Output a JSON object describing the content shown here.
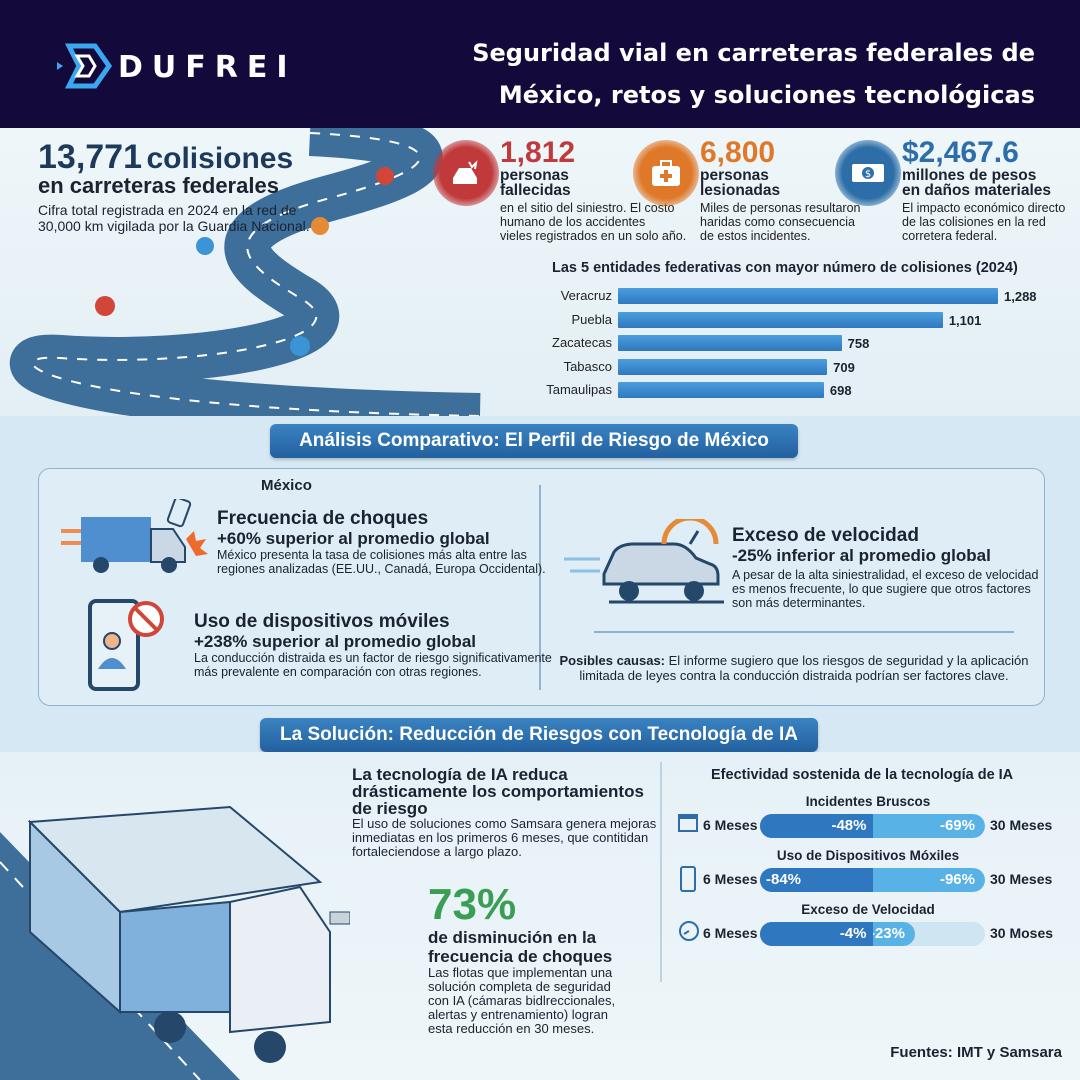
{
  "header": {
    "logo": "DUFREI",
    "title_line1": "Seguridad vial en carreteras federales de",
    "title_line2": "México, retos y soluciones tecnológicas"
  },
  "summary": {
    "number": "13,771",
    "unit": "colisiones",
    "subtitle": "en carreteras federales",
    "desc_line1": "Cifra total registrada en 2024 en la red de",
    "desc_line2": "30,000 km vigilada por la Guardia Nacional."
  },
  "stats": [
    {
      "icon": "car-crash-icon",
      "value": "1,812",
      "label1": "personas",
      "label2": "fallecidas",
      "desc": [
        "en el sitio del siniestro. El costo",
        "humano de los accidentes",
        "vieles registrados en un solo año."
      ],
      "color": "#c0393b"
    },
    {
      "icon": "first-aid-kit-icon",
      "value": "6,800",
      "label1": "personas",
      "label2": "lesionadas",
      "desc": [
        "Miles de personas resultaron",
        "haridas como consecuencia",
        "de estos incidentes."
      ],
      "color": "#e0782a"
    },
    {
      "icon": "money-icon",
      "value": "$2,467.6",
      "label1": "millones de pesos",
      "label2": "en daños materiales",
      "desc": [
        "El impacto económico directo",
        "de las colisiones en la red",
        "corretera federal."
      ],
      "color": "#2d6ea8"
    }
  ],
  "chart_data": {
    "type": "bar",
    "title": "Las 5 entidades federativas con mayor número de colisiones (2024)",
    "categories": [
      "Veracruz",
      "Puebla",
      "Zacatecas",
      "Tabasco",
      "Tamaulipas"
    ],
    "values": [
      1288,
      1101,
      758,
      709,
      698
    ],
    "value_labels": [
      "1,288",
      "1,101",
      "758",
      "709",
      "698"
    ],
    "orientation": "horizontal"
  },
  "analysis": {
    "banner": "Análisis Comparativo: El Perfil de Riesgo de México",
    "country": "México",
    "items": [
      {
        "title": "Frecuencia de choques",
        "sub": "+60% superior al promedio global",
        "desc": [
          "México presenta la tasa de colisiones más alta entre las",
          "regiones analizadas (EE.UU., Canadá, Europa Occidental)."
        ]
      },
      {
        "title": "Uso de dispositivos móviles",
        "sub": "+238% superior al promedio global",
        "desc": [
          "La conducción distraida es un factor de riesgo significativamente",
          "más prevalente en comparación con otras regiones."
        ]
      },
      {
        "title": "Exceso de velocidad",
        "sub": "-25% inferior al promedio global",
        "desc": [
          "A pesar de la alta siniestralidad, el exceso de velocidad",
          "es menos frecuente, lo que sugiere que otros factores",
          "son más determinantes."
        ]
      }
    ],
    "causes_label": "Posibles causas:",
    "causes_line1": " El informe sugiero que los riesgos de seguridad y la aplicación",
    "causes_line2": "limitada de leyes contra la conducción distraida podrían ser factores clave."
  },
  "solution": {
    "banner": "La Solución: Reducción de Riesgos con Tecnología de IA",
    "title": [
      "La tecnología de IA reduca",
      "drásticamente los comportamientos",
      "de riesgo"
    ],
    "desc": [
      "El uso de soluciones como Samsara genera mejoras",
      "inmediatas en los primeros 6 meses, que contitidan",
      "fortaleciendose a largo plazo."
    ],
    "big": "73%",
    "big_label": [
      "de disminución en la",
      "frecuencia de choques"
    ],
    "big_desc": [
      "Las flotas que implementan una",
      "solución completa de seguridad",
      "con IA (cámaras bidlreccionales,",
      "alertas y entrenamiento) logran",
      "esta reducción en 30 meses."
    ],
    "effect_title": "Efectividad sostenida de la tecnología de IA",
    "effects": [
      {
        "icon": "calendar-icon",
        "name": "Incidentes Bruscos",
        "start": "6 Meses",
        "end": "30 Meses",
        "v6": "-48%",
        "v30": "-69%",
        "pct6": 48,
        "pct30": 69
      },
      {
        "icon": "phone-icon",
        "name": "Uso de Dispositivos Móxiles",
        "start": "6 Meses",
        "end": "30 Meses",
        "v6": "-84%",
        "v30": "-96%",
        "pct6": 84,
        "pct30": 96
      },
      {
        "icon": "clock-icon",
        "name": "Exceso de Velocidad",
        "start": "6 Meses",
        "end": "30 Moses",
        "v6": "-4%",
        "v30": "-23%",
        "pct6": 4,
        "pct30": 23
      }
    ],
    "sources": "Fuentes: IMT y Samsara"
  }
}
